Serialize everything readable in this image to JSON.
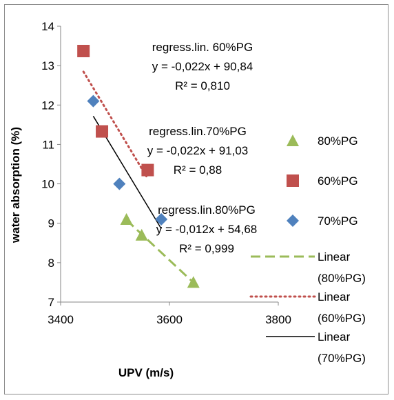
{
  "chart_data": {
    "type": "scatter",
    "xlabel": "UPV (m/s)",
    "ylabel": "water absorption (%)",
    "xlim": [
      3400,
      3800
    ],
    "ylim": [
      7,
      14
    ],
    "xticks": [
      3400,
      3600,
      3800
    ],
    "yticks": [
      7,
      8,
      9,
      10,
      11,
      12,
      13,
      14
    ],
    "grid": false,
    "legend_position": "right",
    "series": [
      {
        "name": "80%PG",
        "marker": "triangle",
        "color": "#9bbb59",
        "x": [
          3521,
          3549,
          3644
        ],
        "y": [
          9.1,
          8.7,
          7.5
        ]
      },
      {
        "name": "60%PG",
        "marker": "square",
        "color": "#c0504d",
        "x": [
          3442,
          3476,
          3560
        ],
        "y": [
          13.37,
          11.33,
          10.35
        ]
      },
      {
        "name": "70%PG",
        "marker": "diamond",
        "color": "#4f81bd",
        "x": [
          3460,
          3508,
          3585
        ],
        "y": [
          12.1,
          10.0,
          9.1
        ]
      }
    ],
    "trendlines": [
      {
        "name": "Linear\n(80%PG)",
        "style": "dashed",
        "color": "#9bbb59",
        "series": "80%PG",
        "x_range": [
          3521,
          3644
        ]
      },
      {
        "name": "Linear\n(60%PG)",
        "style": "dotted",
        "color": "#c0504d",
        "series": "60%PG",
        "x_range": [
          3442,
          3560
        ]
      },
      {
        "name": "Linear\n(70%PG)",
        "style": "solid",
        "color": "#000000",
        "series": "70%PG",
        "x_range": [
          3460,
          3585
        ]
      }
    ],
    "annotations": [
      {
        "lines": [
          "regress.lin. 60%PG",
          "y = -0,022x + 90,84",
          "R² = 0,810"
        ]
      },
      {
        "lines": [
          "regress.lin.70%PG",
          "y = -0,022x + 91,03",
          "R² = 0,88"
        ]
      },
      {
        "lines": [
          "regress.lin.80%PG",
          "y = -0,012x + 54,68",
          "R² = 0,999"
        ]
      }
    ]
  }
}
